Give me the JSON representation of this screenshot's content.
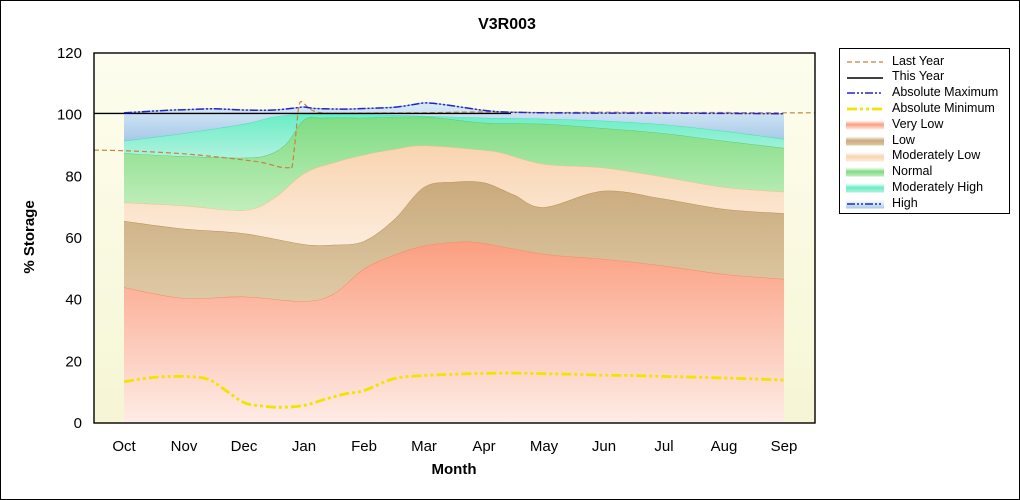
{
  "figure": {
    "title": "V3R003"
  },
  "axes": {
    "x_label": "Month",
    "y_label": "% Storage",
    "y_ticks": [
      0,
      20,
      40,
      60,
      80,
      100,
      120
    ],
    "y_minor_step": 5,
    "y_range": [
      0,
      120
    ],
    "months": [
      "Oct",
      "Nov",
      "Dec",
      "Jan",
      "Feb",
      "Mar",
      "Apr",
      "May",
      "Jun",
      "Jul",
      "Aug",
      "Sep"
    ]
  },
  "legend": {
    "items": [
      {
        "label": "Last Year",
        "type": "line",
        "style": "last_year"
      },
      {
        "label": "This Year",
        "type": "line",
        "style": "this_year"
      },
      {
        "label": "Absolute Maximum",
        "type": "line",
        "style": "abs_max"
      },
      {
        "label": "Absolute Minimum",
        "type": "line",
        "style": "abs_min"
      },
      {
        "label": "Very Low",
        "type": "band",
        "style": "very_low"
      },
      {
        "label": "Low",
        "type": "band",
        "style": "low"
      },
      {
        "label": "Moderately Low",
        "type": "band",
        "style": "mod_low"
      },
      {
        "label": "Normal",
        "type": "band",
        "style": "normal"
      },
      {
        "label": "Moderately High",
        "type": "band",
        "style": "mod_high"
      },
      {
        "label": "High",
        "type": "band",
        "style": "high",
        "overlay_line": "abs_max"
      }
    ]
  },
  "chart_data": {
    "type": "area",
    "title": "V3R003",
    "xlabel": "Month",
    "ylabel": "% Storage",
    "x_categories": [
      "Oct",
      "Nov",
      "Dec",
      "Jan",
      "Feb",
      "Mar",
      "Apr",
      "May",
      "Jun",
      "Jul",
      "Aug",
      "Sep"
    ],
    "ylim": [
      0,
      120
    ],
    "grid": false,
    "legend_position": "outside-right",
    "background": {
      "figure": "#ffffff",
      "plot_top": "#fdfdee",
      "plot_bottom": "#f6f6d5"
    },
    "boundaries": {
      "base": [
        [
          0,
          0
        ],
        [
          11,
          0
        ]
      ],
      "very_low_top": [
        [
          0,
          44
        ],
        [
          1,
          40.5
        ],
        [
          2,
          41
        ],
        [
          3,
          39.5
        ],
        [
          3.5,
          42
        ],
        [
          4,
          50
        ],
        [
          4.5,
          54.5
        ],
        [
          5,
          57.5
        ],
        [
          5.6,
          58.8
        ],
        [
          6,
          58.3
        ],
        [
          7,
          54.8
        ],
        [
          8,
          53.2
        ],
        [
          9,
          51
        ],
        [
          10,
          48.3
        ],
        [
          11,
          46.7
        ]
      ],
      "low_top": [
        [
          0,
          65.5
        ],
        [
          1,
          63
        ],
        [
          2,
          61.5
        ],
        [
          3,
          58
        ],
        [
          3.5,
          57.8
        ],
        [
          4,
          59
        ],
        [
          4.5,
          66
        ],
        [
          5,
          76.5
        ],
        [
          5.5,
          78.2
        ],
        [
          6,
          78
        ],
        [
          6.5,
          74
        ],
        [
          7,
          70
        ],
        [
          8,
          75.3
        ],
        [
          9,
          72.7
        ],
        [
          10,
          69.4
        ],
        [
          11,
          68
        ]
      ],
      "mod_low_top": [
        [
          0,
          71.5
        ],
        [
          1,
          70.5
        ],
        [
          2,
          69
        ],
        [
          2.5,
          73
        ],
        [
          3,
          81
        ],
        [
          3.5,
          84.5
        ],
        [
          4,
          87
        ],
        [
          4.5,
          88.8
        ],
        [
          5,
          90
        ],
        [
          6,
          88.5
        ],
        [
          6.3,
          87.6
        ],
        [
          7,
          84
        ],
        [
          8,
          82.8
        ],
        [
          9,
          79.8
        ],
        [
          10,
          76.5
        ],
        [
          11,
          75
        ]
      ],
      "normal_top": [
        [
          0,
          87.5
        ],
        [
          1,
          86.5
        ],
        [
          2,
          86
        ],
        [
          2.4,
          87
        ],
        [
          2.7,
          90.5
        ],
        [
          3,
          98.3
        ],
        [
          3.3,
          99
        ],
        [
          4,
          99
        ],
        [
          5,
          99.3
        ],
        [
          6,
          97.4
        ],
        [
          7,
          97
        ],
        [
          8,
          95.6
        ],
        [
          9,
          94
        ],
        [
          10,
          91.5
        ],
        [
          11,
          89.2
        ]
      ],
      "mod_high_top": [
        [
          0,
          91.5
        ],
        [
          1,
          94
        ],
        [
          2,
          97
        ],
        [
          2.5,
          99.3
        ],
        [
          3,
          100.2
        ],
        [
          4,
          100.1
        ],
        [
          5,
          99.6
        ],
        [
          6,
          99
        ],
        [
          7,
          98.7
        ],
        [
          8,
          98
        ],
        [
          9,
          96.8
        ],
        [
          10,
          94.7
        ],
        [
          11,
          92.1
        ]
      ],
      "abs_max_top": [
        [
          0,
          100.6
        ],
        [
          0.7,
          101.4
        ],
        [
          1,
          101.6
        ],
        [
          1.5,
          101.9
        ],
        [
          2,
          101.5
        ],
        [
          2.5,
          101.5
        ],
        [
          2.9,
          102.3
        ],
        [
          3,
          102.5
        ],
        [
          3.2,
          102
        ],
        [
          3.7,
          101.8
        ],
        [
          4,
          102
        ],
        [
          4.5,
          102.4
        ],
        [
          4.8,
          103.2
        ],
        [
          5,
          103.8
        ],
        [
          5.2,
          103.6
        ],
        [
          5.5,
          102.8
        ],
        [
          6,
          101.4
        ],
        [
          6.3,
          100.9
        ],
        [
          6.7,
          100.7
        ],
        [
          7,
          100.6
        ],
        [
          8,
          100.5
        ],
        [
          9,
          100.5
        ],
        [
          10,
          100.4
        ],
        [
          11,
          100.3
        ]
      ]
    },
    "bands": [
      {
        "name": "very_low",
        "label": "Very Low",
        "bottom": "base",
        "top": "very_low_top",
        "style": "very_low"
      },
      {
        "name": "low",
        "label": "Low",
        "bottom": "very_low_top",
        "top": "low_top",
        "style": "low"
      },
      {
        "name": "mod_low",
        "label": "Moderately Low",
        "bottom": "low_top",
        "top": "mod_low_top",
        "style": "mod_low"
      },
      {
        "name": "normal",
        "label": "Normal",
        "bottom": "mod_low_top",
        "top": "normal_top",
        "style": "normal"
      },
      {
        "name": "mod_high",
        "label": "Moderately High",
        "bottom": "normal_top",
        "top": "mod_high_top",
        "style": "mod_high"
      },
      {
        "name": "high",
        "label": "High",
        "bottom": "mod_high_top",
        "top": "abs_max_top",
        "style": "high"
      }
    ],
    "lines": [
      {
        "name": "abs_min",
        "label": "Absolute Minimum",
        "style": "abs_min",
        "points": [
          [
            0,
            13.4
          ],
          [
            0.5,
            14.8
          ],
          [
            1,
            15.1
          ],
          [
            1.4,
            14.2
          ],
          [
            1.7,
            10.5
          ],
          [
            2,
            6.6
          ],
          [
            2.3,
            5.5
          ],
          [
            2.6,
            5.1
          ],
          [
            3,
            5.7
          ],
          [
            3.4,
            8
          ],
          [
            3.7,
            9.5
          ],
          [
            4,
            10.5
          ],
          [
            4.5,
            14.4
          ],
          [
            5,
            15.4
          ],
          [
            5.5,
            15.8
          ],
          [
            6,
            16.1
          ],
          [
            6.5,
            16.2
          ],
          [
            7,
            16
          ],
          [
            7.5,
            15.8
          ],
          [
            8,
            15.5
          ],
          [
            8.5,
            15.4
          ],
          [
            9,
            15.1
          ],
          [
            9.5,
            14.9
          ],
          [
            10,
            14.6
          ],
          [
            10.5,
            14.3
          ],
          [
            11,
            13.9
          ]
        ]
      },
      {
        "name": "last_year",
        "label": "Last Year",
        "style": "last_year",
        "points": [
          [
            -0.5,
            88.5
          ],
          [
            0,
            88.3
          ],
          [
            0.5,
            87.9
          ],
          [
            1,
            87.3
          ],
          [
            1.5,
            86.4
          ],
          [
            2,
            85.3
          ],
          [
            2.3,
            84.5
          ],
          [
            2.6,
            83
          ],
          [
            2.75,
            82.8
          ],
          [
            2.8,
            83
          ],
          [
            2.85,
            91
          ],
          [
            2.92,
            103.2
          ],
          [
            3,
            103.5
          ],
          [
            3.1,
            101.8
          ],
          [
            3.25,
            100.7
          ],
          [
            3.5,
            100.4
          ],
          [
            4,
            100.5
          ],
          [
            5,
            100.6
          ],
          [
            6,
            100.9
          ],
          [
            7,
            100.7
          ],
          [
            8,
            100.8
          ],
          [
            9,
            100.7
          ],
          [
            10,
            100.7
          ],
          [
            11,
            100.6
          ],
          [
            11.52,
            100.6
          ]
        ]
      },
      {
        "name": "this_year",
        "label": "This Year",
        "style": "this_year",
        "points": [
          [
            -0.5,
            100.4
          ],
          [
            2,
            100.4
          ],
          [
            4,
            100.4
          ],
          [
            6.45,
            100.4
          ]
        ]
      },
      {
        "name": "abs_max",
        "label": "Absolute Maximum",
        "style": "abs_max",
        "points": [
          [
            0,
            100.6
          ],
          [
            0.7,
            101.4
          ],
          [
            1,
            101.6
          ],
          [
            1.5,
            101.9
          ],
          [
            2,
            101.5
          ],
          [
            2.5,
            101.5
          ],
          [
            2.9,
            102.3
          ],
          [
            3,
            102.5
          ],
          [
            3.2,
            102
          ],
          [
            3.7,
            101.8
          ],
          [
            4,
            102
          ],
          [
            4.5,
            102.4
          ],
          [
            4.8,
            103.2
          ],
          [
            5,
            103.8
          ],
          [
            5.2,
            103.6
          ],
          [
            5.5,
            102.8
          ],
          [
            6,
            101.4
          ],
          [
            6.3,
            100.9
          ],
          [
            6.7,
            100.7
          ],
          [
            7,
            100.6
          ],
          [
            8,
            100.5
          ],
          [
            9,
            100.5
          ],
          [
            10,
            100.4
          ],
          [
            11,
            100.3
          ]
        ]
      }
    ],
    "band_styles": {
      "very_low": {
        "top": "#fb9e80",
        "bottom": "#feece6",
        "edge": "#f58a68"
      },
      "low": {
        "top": "#c9aa7c",
        "bottom": "#dfcaa6",
        "edge": "#bb9257"
      },
      "mod_low": {
        "top": "#f9d4b0",
        "bottom": "#fcecdc",
        "edge": "#eec08f"
      },
      "normal": {
        "top": "#7edc83",
        "bottom": "#c2eebc",
        "edge": "#5ec973"
      },
      "mod_high": {
        "top": "#68eec6",
        "bottom": "#aff2dd",
        "edge": "#45e0b0"
      },
      "high": {
        "top": "#dcecf8",
        "bottom": "#a6c9e8",
        "edge": "#8cb8dc"
      }
    },
    "line_styles": {
      "last_year": {
        "color": "#c8823f",
        "width": 1.2,
        "dash": "5 3"
      },
      "this_year": {
        "color": "#000000",
        "width": 1.4,
        "dash": ""
      },
      "abs_max": {
        "color": "#2323cc",
        "width": 1.5,
        "dash": "8 2 2 2 2 2"
      },
      "abs_min": {
        "color": "#f3e300",
        "width": 2.8,
        "dash": "10 3 3 3 3 3"
      }
    }
  }
}
